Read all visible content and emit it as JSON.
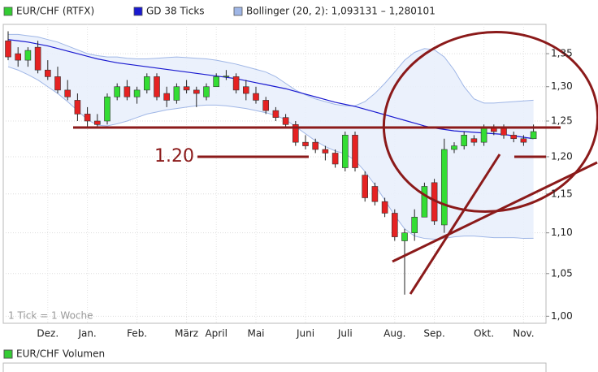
{
  "chart_data": {
    "type": "candlestick",
    "log": true,
    "grid": true,
    "ylim": [
      0.992,
      1.396
    ],
    "yticks": [
      {
        "value": 1.0,
        "label": "1,00"
      },
      {
        "value": 1.05,
        "label": "1,05"
      },
      {
        "value": 1.1,
        "label": "1,10"
      },
      {
        "value": 1.15,
        "label": "1,15"
      },
      {
        "value": 1.2,
        "label": "1,20"
      },
      {
        "value": 1.25,
        "label": "1,25"
      },
      {
        "value": 1.3,
        "label": "1,30"
      },
      {
        "value": 1.35,
        "label": "1,35"
      }
    ],
    "categories": [
      null,
      null,
      null,
      null,
      "Dez.",
      null,
      null,
      null,
      "Jan.",
      null,
      null,
      null,
      null,
      "Feb.",
      null,
      null,
      null,
      null,
      "März",
      null,
      null,
      "April",
      null,
      null,
      null,
      "Mai",
      null,
      null,
      null,
      null,
      "Juni",
      null,
      null,
      null,
      "Juli",
      null,
      null,
      null,
      null,
      "Aug.",
      null,
      null,
      null,
      "Sep.",
      null,
      null,
      null,
      null,
      "Okt.",
      null,
      null,
      null,
      "Nov.",
      null
    ],
    "note": "1 Tick = 1 Woche",
    "annotation": "1.20",
    "lower_panel_legend": "EUR/CHF Volumen",
    "series": [
      {
        "name": "EUR/CHF (RTFX)",
        "type": "candlestick",
        "color": "#33cc33",
        "up_color": "#33dd33",
        "down_color": "#e52222",
        "open": [
          1.37,
          1.35,
          1.34,
          1.36,
          1.325,
          1.315,
          1.295,
          1.28,
          1.26,
          1.25,
          1.25,
          1.285,
          1.3,
          1.285,
          1.295,
          1.315,
          1.29,
          1.28,
          1.3,
          1.295,
          1.285,
          1.3,
          1.315,
          1.315,
          1.3,
          1.29,
          1.28,
          1.265,
          1.255,
          1.245,
          1.22,
          1.22,
          1.21,
          1.205,
          1.185,
          1.23,
          1.175,
          1.16,
          1.14,
          1.125,
          1.09,
          1.1,
          1.12,
          1.165,
          1.11,
          1.21,
          1.215,
          1.225,
          1.22,
          1.24,
          1.24,
          1.23,
          1.225,
          1.225
        ],
        "high": [
          1.385,
          1.36,
          1.36,
          1.37,
          1.34,
          1.33,
          1.31,
          1.29,
          1.27,
          1.26,
          1.29,
          1.305,
          1.31,
          1.3,
          1.32,
          1.32,
          1.3,
          1.305,
          1.31,
          1.3,
          1.305,
          1.32,
          1.325,
          1.32,
          1.31,
          1.3,
          1.285,
          1.27,
          1.26,
          1.25,
          1.23,
          1.225,
          1.215,
          1.21,
          1.235,
          1.235,
          1.18,
          1.165,
          1.145,
          1.13,
          1.105,
          1.13,
          1.165,
          1.17,
          1.225,
          1.22,
          1.235,
          1.23,
          1.245,
          1.245,
          1.245,
          1.235,
          1.23,
          1.245
        ],
        "low": [
          1.34,
          1.33,
          1.33,
          1.32,
          1.31,
          1.29,
          1.28,
          1.25,
          1.24,
          1.24,
          1.245,
          1.28,
          1.28,
          1.275,
          1.29,
          1.28,
          1.27,
          1.275,
          1.29,
          1.27,
          1.28,
          1.3,
          1.31,
          1.29,
          1.28,
          1.275,
          1.26,
          1.25,
          1.24,
          1.215,
          1.21,
          1.205,
          1.195,
          1.185,
          1.18,
          1.18,
          1.14,
          1.135,
          1.12,
          1.09,
          1.025,
          1.09,
          1.12,
          1.11,
          1.1,
          1.205,
          1.21,
          1.215,
          1.215,
          1.23,
          1.225,
          1.22,
          1.215,
          1.225
        ],
        "close": [
          1.345,
          1.34,
          1.355,
          1.325,
          1.315,
          1.295,
          1.285,
          1.26,
          1.25,
          1.245,
          1.285,
          1.3,
          1.285,
          1.295,
          1.315,
          1.285,
          1.28,
          1.3,
          1.295,
          1.29,
          1.3,
          1.315,
          1.316,
          1.295,
          1.29,
          1.28,
          1.265,
          1.255,
          1.245,
          1.22,
          1.215,
          1.21,
          1.205,
          1.19,
          1.23,
          1.185,
          1.145,
          1.14,
          1.125,
          1.095,
          1.1,
          1.12,
          1.16,
          1.115,
          1.21,
          1.215,
          1.23,
          1.22,
          1.24,
          1.235,
          1.23,
          1.225,
          1.22,
          1.235
        ]
      },
      {
        "name": "GD 38 Ticks",
        "type": "line",
        "color": "#1a1ad0",
        "values": [
          1.372,
          1.37,
          1.368,
          1.365,
          1.362,
          1.358,
          1.354,
          1.35,
          1.346,
          1.342,
          1.339,
          1.336,
          1.334,
          1.332,
          1.33,
          1.328,
          1.326,
          1.324,
          1.322,
          1.32,
          1.318,
          1.316,
          1.314,
          1.312,
          1.309,
          1.306,
          1.303,
          1.3,
          1.297,
          1.293,
          1.289,
          1.285,
          1.281,
          1.277,
          1.274,
          1.271,
          1.267,
          1.263,
          1.259,
          1.255,
          1.251,
          1.247,
          1.243,
          1.24,
          1.238,
          1.236,
          1.235,
          1.234,
          1.233,
          1.232,
          1.231,
          1.229,
          1.227,
          1.225
        ]
      },
      {
        "name": "Bollinger (20, 2): 1,093131 – 1,280101",
        "type": "band",
        "color": "#9fb6e6",
        "upper": [
          1.38,
          1.38,
          1.378,
          1.376,
          1.372,
          1.368,
          1.362,
          1.356,
          1.35,
          1.347,
          1.345,
          1.345,
          1.343,
          1.342,
          1.342,
          1.343,
          1.344,
          1.345,
          1.344,
          1.343,
          1.342,
          1.34,
          1.337,
          1.334,
          1.33,
          1.326,
          1.322,
          1.315,
          1.305,
          1.295,
          1.288,
          1.282,
          1.278,
          1.274,
          1.272,
          1.272,
          1.278,
          1.29,
          1.305,
          1.322,
          1.34,
          1.352,
          1.358,
          1.356,
          1.345,
          1.325,
          1.3,
          1.282,
          1.276,
          1.276,
          1.277,
          1.278,
          1.279,
          1.280101
        ],
        "lower": [
          1.33,
          1.325,
          1.318,
          1.31,
          1.3,
          1.29,
          1.278,
          1.265,
          1.252,
          1.244,
          1.243,
          1.246,
          1.25,
          1.255,
          1.26,
          1.263,
          1.266,
          1.268,
          1.27,
          1.272,
          1.273,
          1.273,
          1.272,
          1.27,
          1.268,
          1.265,
          1.262,
          1.258,
          1.252,
          1.242,
          1.232,
          1.222,
          1.214,
          1.208,
          1.204,
          1.195,
          1.18,
          1.162,
          1.142,
          1.122,
          1.105,
          1.096,
          1.093,
          1.092,
          1.093,
          1.095,
          1.096,
          1.096,
          1.095,
          1.094,
          1.094,
          1.094,
          1.093,
          1.093131
        ]
      }
    ]
  }
}
